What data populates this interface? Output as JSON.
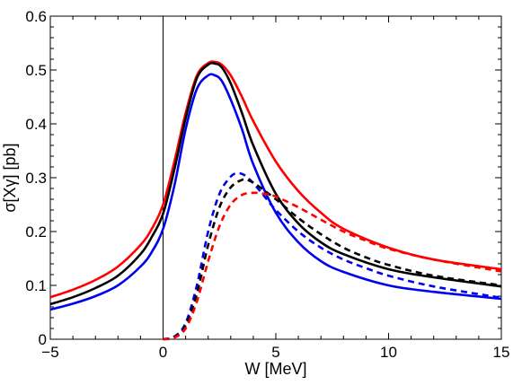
{
  "chart_data": {
    "type": "line",
    "title": "",
    "xlabel": "W [MeV]",
    "ylabel": "σ[Xγ] [pb]",
    "xlim": [
      -5,
      15
    ],
    "ylim": [
      0,
      0.6
    ],
    "xticks": [
      -5,
      0,
      5,
      10,
      15
    ],
    "yticks": [
      0,
      0.1,
      0.2,
      0.3,
      0.4,
      0.5,
      0.6
    ],
    "ytick_labels": [
      "0",
      "0.1",
      "0.2",
      "0.3",
      "0.4",
      "0.5",
      "0.6"
    ],
    "vertical_line_x": 0,
    "grid": false,
    "series": [
      {
        "color": "#ff0000",
        "style": "solid",
        "x": [
          -5,
          -4,
          -3,
          -2,
          -1,
          -0.5,
          0,
          0.5,
          1,
          1.5,
          2,
          2.3,
          2.6,
          3,
          3.5,
          4,
          5,
          6,
          7,
          8,
          10,
          12,
          15
        ],
        "y": [
          0.078,
          0.092,
          0.11,
          0.135,
          0.175,
          0.205,
          0.25,
          0.33,
          0.42,
          0.49,
          0.513,
          0.515,
          0.51,
          0.49,
          0.45,
          0.405,
          0.33,
          0.275,
          0.235,
          0.205,
          0.17,
          0.148,
          0.13
        ]
      },
      {
        "color": "#000000",
        "style": "solid",
        "x": [
          -5,
          -4,
          -3,
          -2,
          -1,
          -0.5,
          0,
          0.5,
          1,
          1.5,
          2,
          2.3,
          2.6,
          3,
          3.5,
          4,
          5,
          6,
          7,
          8,
          10,
          12,
          15
        ],
        "y": [
          0.065,
          0.078,
          0.095,
          0.118,
          0.158,
          0.19,
          0.233,
          0.315,
          0.41,
          0.485,
          0.51,
          0.512,
          0.505,
          0.475,
          0.42,
          0.36,
          0.27,
          0.215,
          0.18,
          0.158,
          0.13,
          0.115,
          0.098
        ]
      },
      {
        "color": "#0000ee",
        "style": "solid",
        "x": [
          -5,
          -4,
          -3,
          -2,
          -1,
          -0.5,
          0,
          0.5,
          1,
          1.5,
          2,
          2.3,
          2.6,
          3,
          3.5,
          4,
          5,
          6,
          7,
          8,
          10,
          12,
          15
        ],
        "y": [
          0.055,
          0.066,
          0.08,
          0.1,
          0.135,
          0.162,
          0.205,
          0.285,
          0.39,
          0.465,
          0.49,
          0.49,
          0.48,
          0.445,
          0.39,
          0.325,
          0.235,
          0.18,
          0.145,
          0.125,
          0.1,
          0.088,
          0.075
        ]
      },
      {
        "color": "#0000ee",
        "style": "dashed",
        "x": [
          0,
          0.5,
          1,
          1.5,
          2,
          2.5,
          3,
          3.3,
          3.6,
          4,
          4.5,
          5,
          6,
          7,
          8,
          9,
          10,
          12,
          15
        ],
        "y": [
          0,
          0.005,
          0.03,
          0.1,
          0.2,
          0.27,
          0.302,
          0.308,
          0.305,
          0.29,
          0.265,
          0.24,
          0.2,
          0.17,
          0.148,
          0.132,
          0.118,
          0.098,
          0.077
        ]
      },
      {
        "color": "#000000",
        "style": "dashed",
        "x": [
          0,
          0.5,
          1,
          1.5,
          2,
          2.5,
          3,
          3.5,
          3.8,
          4.2,
          5,
          6,
          7,
          8,
          9,
          10,
          12,
          15
        ],
        "y": [
          0,
          0.004,
          0.025,
          0.085,
          0.175,
          0.245,
          0.282,
          0.296,
          0.295,
          0.285,
          0.26,
          0.225,
          0.195,
          0.17,
          0.152,
          0.138,
          0.118,
          0.1
        ]
      },
      {
        "color": "#ff0000",
        "style": "dashed",
        "x": [
          0,
          0.5,
          1,
          1.5,
          2,
          2.5,
          3,
          3.5,
          4,
          4.5,
          5,
          6,
          7,
          8,
          9,
          10,
          12,
          15
        ],
        "y": [
          0,
          0.003,
          0.02,
          0.07,
          0.145,
          0.21,
          0.25,
          0.268,
          0.272,
          0.27,
          0.265,
          0.245,
          0.222,
          0.2,
          0.183,
          0.168,
          0.148,
          0.126
        ]
      }
    ]
  }
}
